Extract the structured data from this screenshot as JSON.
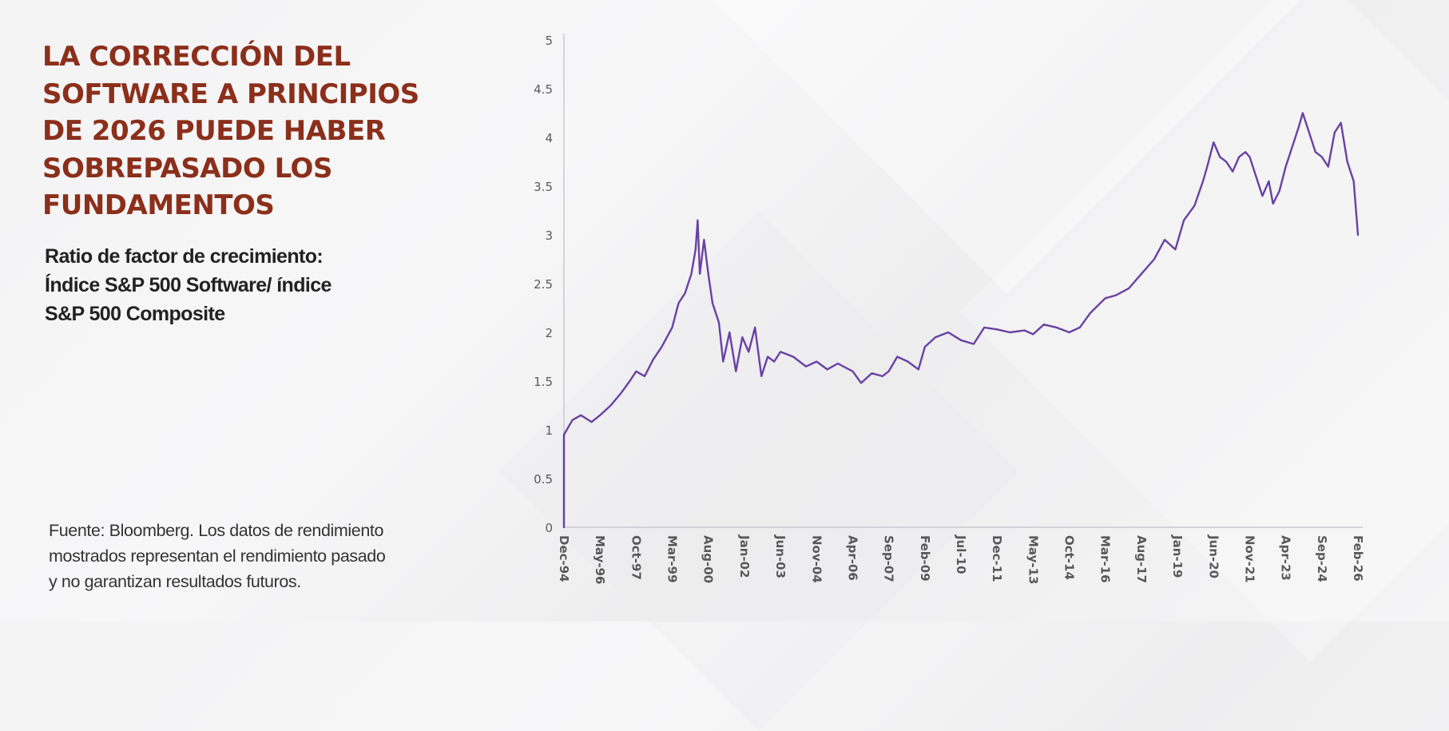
{
  "headline_lines": [
    "LA CORRECCIÓN DEL",
    "SOFTWARE A PRINCIPIOS",
    "DE 2026 PUEDE HABER",
    "SOBREPASADO LOS",
    "FUNDAMENTOS"
  ],
  "subtitle_lines": [
    "Ratio de factor de crecimiento:",
    "Índice S&P 500 Software/ índice",
    "S&P 500 Composite"
  ],
  "source_lines": [
    "Fuente: Bloomberg. Los datos de rendimiento",
    "mostrados representan el rendimiento pasado",
    "y no garantizan resultados futuros."
  ],
  "colors": {
    "headline": "#8b2f1b",
    "series": "#5a2e9a",
    "axis_text": "#333333",
    "axis_line": "#c8c8d0"
  },
  "chart_data": {
    "type": "line",
    "title": "",
    "xlabel": "",
    "ylabel": "",
    "ylim": [
      0,
      5
    ],
    "yticks": [
      0,
      0.5,
      1,
      1.5,
      2,
      2.5,
      3,
      3.5,
      4,
      4.5,
      5
    ],
    "ytick_labels": [
      "0",
      "0.5",
      "1",
      "1.5",
      "2",
      "2.5",
      "3",
      "3.5",
      "4",
      "4.5",
      "5"
    ],
    "xlim": [
      "1994-12",
      "2026-02"
    ],
    "xticks": [
      {
        "label": "Dec-94",
        "date": "1994-12"
      },
      {
        "label": "May-96",
        "date": "1996-05"
      },
      {
        "label": "Oct-97",
        "date": "1997-10"
      },
      {
        "label": "Mar-99",
        "date": "1999-03"
      },
      {
        "label": "Aug-00",
        "date": "2000-08"
      },
      {
        "label": "Jan-02",
        "date": "2002-01"
      },
      {
        "label": "Jun-03",
        "date": "2003-06"
      },
      {
        "label": "Nov-04",
        "date": "2004-11"
      },
      {
        "label": "Apr-06",
        "date": "2006-04"
      },
      {
        "label": "Sep-07",
        "date": "2007-09"
      },
      {
        "label": "Feb-09",
        "date": "2009-02"
      },
      {
        "label": "Jul-10",
        "date": "2010-07"
      },
      {
        "label": "Dec-11",
        "date": "2011-12"
      },
      {
        "label": "May-13",
        "date": "2013-05"
      },
      {
        "label": "Oct-14",
        "date": "2014-10"
      },
      {
        "label": "Mar-16",
        "date": "2016-03"
      },
      {
        "label": "Aug-17",
        "date": "2017-08"
      },
      {
        "label": "Jan-19",
        "date": "2019-01"
      },
      {
        "label": "Jun-20",
        "date": "2020-06"
      },
      {
        "label": "Nov-21",
        "date": "2021-11"
      },
      {
        "label": "Apr-23",
        "date": "2023-04"
      },
      {
        "label": "Sep-24",
        "date": "2024-09"
      },
      {
        "label": "Feb-26",
        "date": "2026-02"
      }
    ],
    "grid": false,
    "series": [
      {
        "name": "",
        "points": [
          {
            "x": "1994-12",
            "y": 0.0
          },
          {
            "x": "1994-12",
            "y": 0.95
          },
          {
            "x": "1995-04",
            "y": 1.1
          },
          {
            "x": "1995-08",
            "y": 1.15
          },
          {
            "x": "1996-01",
            "y": 1.08
          },
          {
            "x": "1996-05",
            "y": 1.15
          },
          {
            "x": "1996-10",
            "y": 1.25
          },
          {
            "x": "1997-03",
            "y": 1.38
          },
          {
            "x": "1997-07",
            "y": 1.5
          },
          {
            "x": "1997-10",
            "y": 1.6
          },
          {
            "x": "1998-02",
            "y": 1.55
          },
          {
            "x": "1998-06",
            "y": 1.72
          },
          {
            "x": "1998-10",
            "y": 1.85
          },
          {
            "x": "1999-03",
            "y": 2.05
          },
          {
            "x": "1999-06",
            "y": 2.3
          },
          {
            "x": "1999-09",
            "y": 2.4
          },
          {
            "x": "1999-12",
            "y": 2.6
          },
          {
            "x": "2000-02",
            "y": 2.85
          },
          {
            "x": "2000-03",
            "y": 3.15
          },
          {
            "x": "2000-04",
            "y": 2.6
          },
          {
            "x": "2000-06",
            "y": 2.95
          },
          {
            "x": "2000-08",
            "y": 2.6
          },
          {
            "x": "2000-10",
            "y": 2.3
          },
          {
            "x": "2001-01",
            "y": 2.1
          },
          {
            "x": "2001-03",
            "y": 1.7
          },
          {
            "x": "2001-06",
            "y": 2.0
          },
          {
            "x": "2001-09",
            "y": 1.6
          },
          {
            "x": "2001-12",
            "y": 1.95
          },
          {
            "x": "2002-03",
            "y": 1.8
          },
          {
            "x": "2002-06",
            "y": 2.05
          },
          {
            "x": "2002-09",
            "y": 1.55
          },
          {
            "x": "2002-12",
            "y": 1.75
          },
          {
            "x": "2003-03",
            "y": 1.7
          },
          {
            "x": "2003-06",
            "y": 1.8
          },
          {
            "x": "2003-12",
            "y": 1.75
          },
          {
            "x": "2004-06",
            "y": 1.65
          },
          {
            "x": "2004-11",
            "y": 1.7
          },
          {
            "x": "2005-04",
            "y": 1.62
          },
          {
            "x": "2005-09",
            "y": 1.68
          },
          {
            "x": "2006-04",
            "y": 1.6
          },
          {
            "x": "2006-08",
            "y": 1.48
          },
          {
            "x": "2007-01",
            "y": 1.58
          },
          {
            "x": "2007-06",
            "y": 1.55
          },
          {
            "x": "2007-09",
            "y": 1.6
          },
          {
            "x": "2008-01",
            "y": 1.75
          },
          {
            "x": "2008-06",
            "y": 1.7
          },
          {
            "x": "2008-11",
            "y": 1.62
          },
          {
            "x": "2009-02",
            "y": 1.85
          },
          {
            "x": "2009-07",
            "y": 1.95
          },
          {
            "x": "2010-01",
            "y": 2.0
          },
          {
            "x": "2010-07",
            "y": 1.92
          },
          {
            "x": "2011-01",
            "y": 1.88
          },
          {
            "x": "2011-06",
            "y": 2.05
          },
          {
            "x": "2011-12",
            "y": 2.03
          },
          {
            "x": "2012-06",
            "y": 2.0
          },
          {
            "x": "2013-01",
            "y": 2.02
          },
          {
            "x": "2013-05",
            "y": 1.98
          },
          {
            "x": "2013-10",
            "y": 2.08
          },
          {
            "x": "2014-04",
            "y": 2.05
          },
          {
            "x": "2014-10",
            "y": 2.0
          },
          {
            "x": "2015-03",
            "y": 2.05
          },
          {
            "x": "2015-08",
            "y": 2.2
          },
          {
            "x": "2016-03",
            "y": 2.35
          },
          {
            "x": "2016-08",
            "y": 2.38
          },
          {
            "x": "2017-02",
            "y": 2.45
          },
          {
            "x": "2017-08",
            "y": 2.6
          },
          {
            "x": "2018-02",
            "y": 2.75
          },
          {
            "x": "2018-07",
            "y": 2.95
          },
          {
            "x": "2018-12",
            "y": 2.85
          },
          {
            "x": "2019-04",
            "y": 3.15
          },
          {
            "x": "2019-09",
            "y": 3.3
          },
          {
            "x": "2020-01",
            "y": 3.55
          },
          {
            "x": "2020-03",
            "y": 3.7
          },
          {
            "x": "2020-06",
            "y": 3.95
          },
          {
            "x": "2020-09",
            "y": 3.8
          },
          {
            "x": "2020-12",
            "y": 3.75
          },
          {
            "x": "2021-03",
            "y": 3.65
          },
          {
            "x": "2021-06",
            "y": 3.8
          },
          {
            "x": "2021-09",
            "y": 3.85
          },
          {
            "x": "2021-11",
            "y": 3.8
          },
          {
            "x": "2022-02",
            "y": 3.6
          },
          {
            "x": "2022-05",
            "y": 3.4
          },
          {
            "x": "2022-08",
            "y": 3.55
          },
          {
            "x": "2022-10",
            "y": 3.32
          },
          {
            "x": "2023-01",
            "y": 3.45
          },
          {
            "x": "2023-04",
            "y": 3.7
          },
          {
            "x": "2023-07",
            "y": 3.9
          },
          {
            "x": "2023-10",
            "y": 4.1
          },
          {
            "x": "2023-12",
            "y": 4.25
          },
          {
            "x": "2024-03",
            "y": 4.05
          },
          {
            "x": "2024-06",
            "y": 3.85
          },
          {
            "x": "2024-09",
            "y": 3.8
          },
          {
            "x": "2024-12",
            "y": 3.7
          },
          {
            "x": "2025-03",
            "y": 4.05
          },
          {
            "x": "2025-06",
            "y": 4.15
          },
          {
            "x": "2025-09",
            "y": 3.75
          },
          {
            "x": "2025-12",
            "y": 3.55
          },
          {
            "x": "2026-02",
            "y": 3.0
          }
        ]
      }
    ]
  }
}
